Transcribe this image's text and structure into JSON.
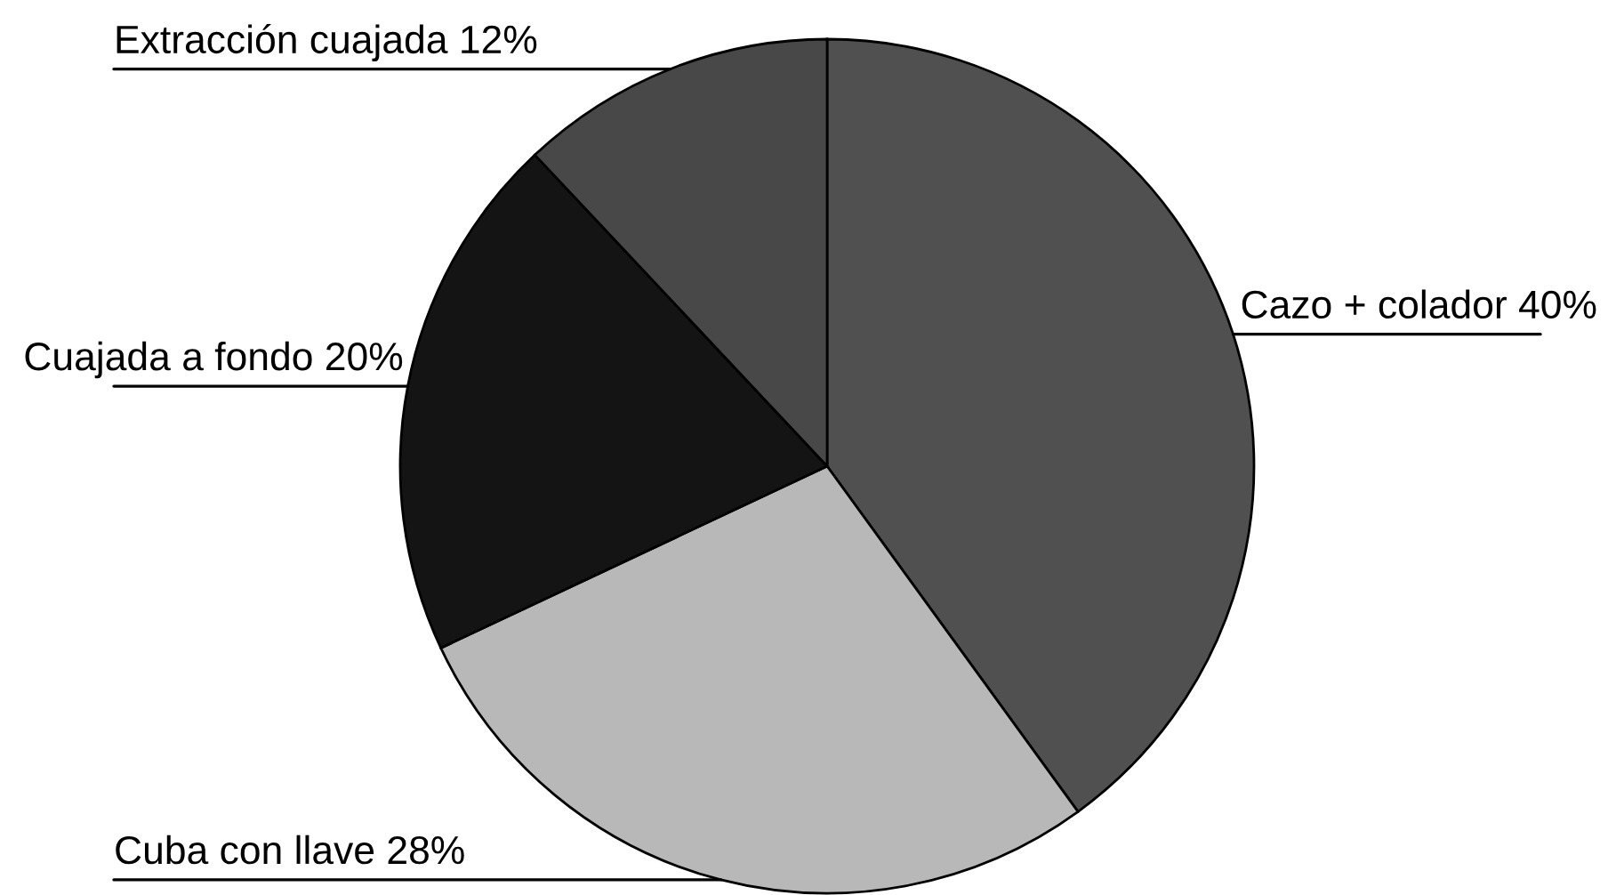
{
  "chart_data": {
    "type": "pie",
    "categories": [
      "Cazo + colador",
      "Cuba con llave",
      "Cuajada a fondo",
      "Extracción cuajada"
    ],
    "values": [
      40,
      28,
      20,
      12
    ],
    "colors": [
      "#505050",
      "#b8b8b8",
      "#141414",
      "#484848"
    ],
    "value_labels": [
      "40%",
      "28%",
      "20%",
      "12%"
    ]
  }
}
